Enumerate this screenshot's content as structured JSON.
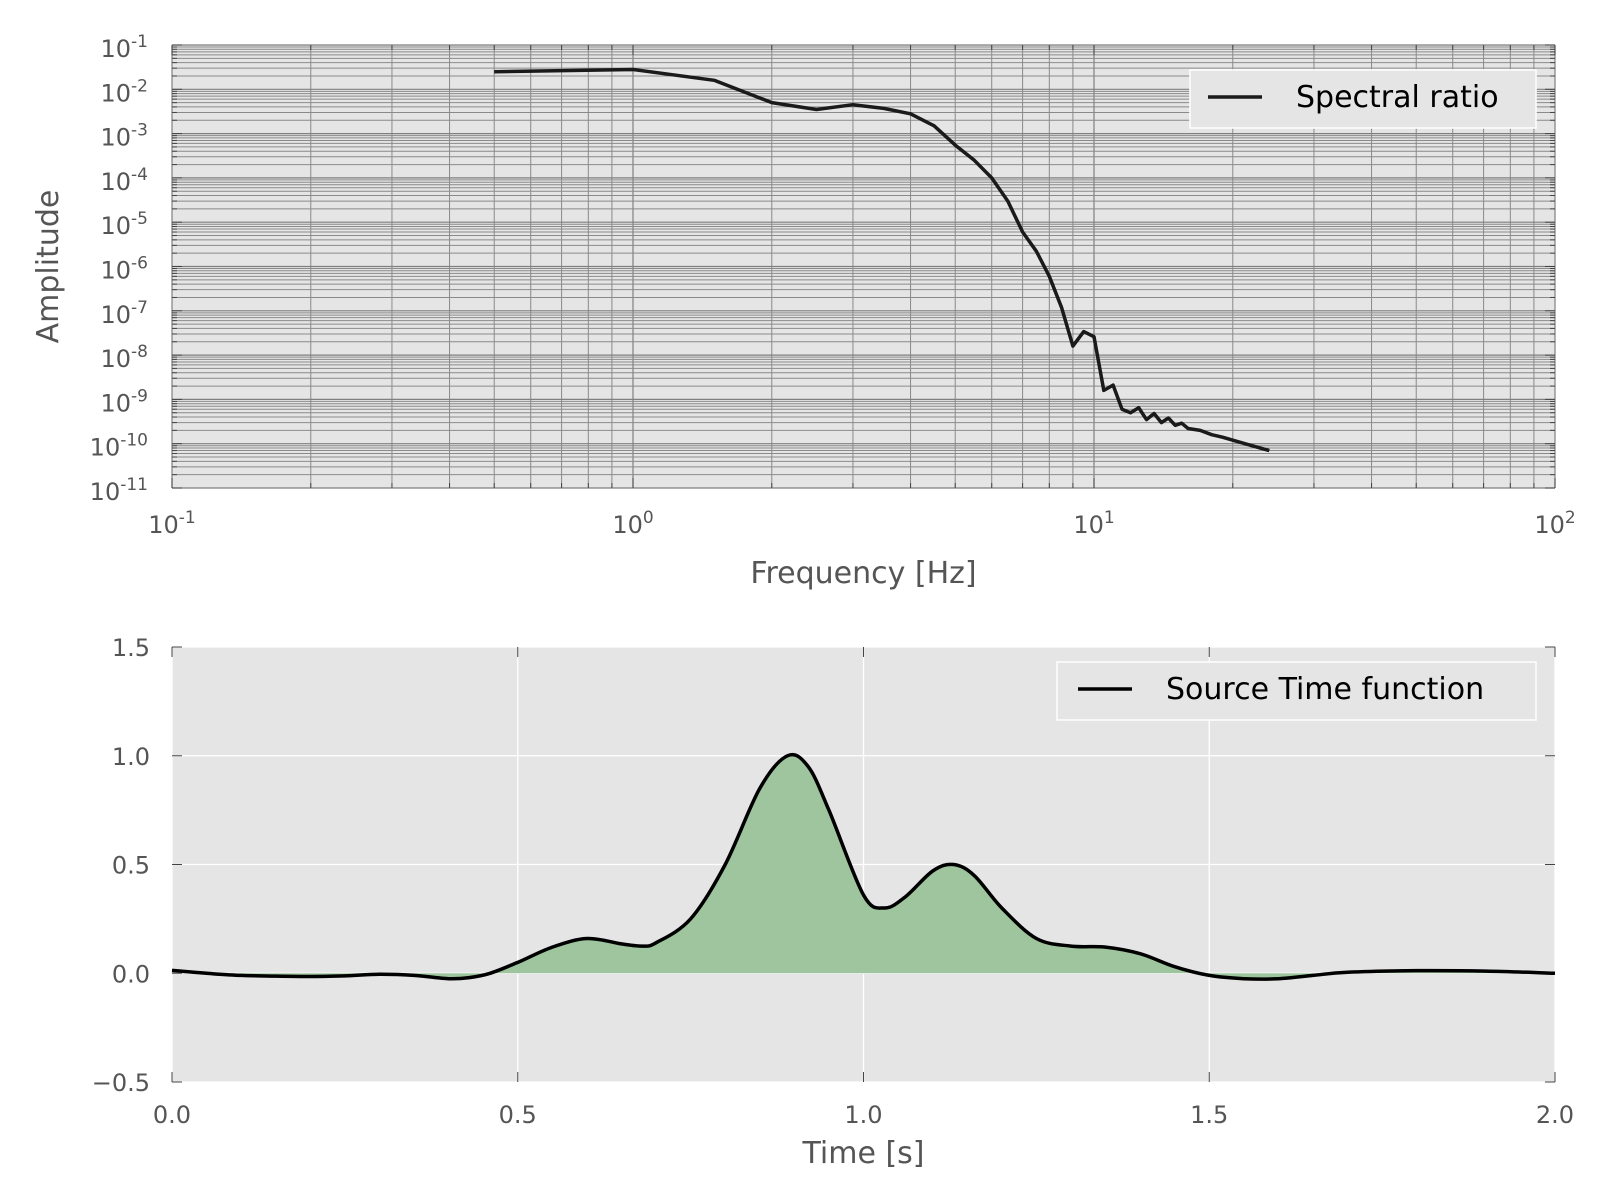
{
  "chart_data": [
    {
      "type": "line",
      "xscale": "log",
      "yscale": "log",
      "xlim": [
        0.1,
        100
      ],
      "ylim": [
        1e-11,
        0.1
      ],
      "xlabel": "Frequency [Hz]",
      "ylabel": "Amplitude",
      "grid": "major and minor",
      "legend_position": "top-right",
      "x_tick_labels": [
        {
          "base": "10",
          "exp": "-1"
        },
        {
          "base": "10",
          "exp": "0"
        },
        {
          "base": "10",
          "exp": "1"
        },
        {
          "base": "10",
          "exp": "2"
        }
      ],
      "y_tick_labels": [
        {
          "base": "10",
          "exp": "-1"
        },
        {
          "base": "10",
          "exp": "-2"
        },
        {
          "base": "10",
          "exp": "-3"
        },
        {
          "base": "10",
          "exp": "-4"
        },
        {
          "base": "10",
          "exp": "-5"
        },
        {
          "base": "10",
          "exp": "-6"
        },
        {
          "base": "10",
          "exp": "-7"
        },
        {
          "base": "10",
          "exp": "-8"
        },
        {
          "base": "10",
          "exp": "-9"
        },
        {
          "base": "10",
          "exp": "-10"
        },
        {
          "base": "10",
          "exp": "-11"
        }
      ],
      "series": [
        {
          "name": "Spectral ratio",
          "color": "#1a1a1a",
          "x": [
            0.5,
            1.0,
            1.5,
            2.0,
            2.5,
            3.0,
            3.5,
            4.0,
            4.5,
            5.0,
            5.5,
            6.0,
            6.5,
            7.0,
            7.5,
            8.0,
            8.5,
            9.0,
            9.5,
            10.0,
            10.5,
            11.0,
            11.5,
            12.0,
            12.5,
            13.0,
            13.5,
            14.0,
            14.5,
            15.0,
            15.5,
            16.0,
            17.0,
            18.0,
            19.0,
            20.0,
            22.0,
            24.0
          ],
          "y": [
            0.025,
            0.028,
            0.016,
            0.005,
            0.0035,
            0.0045,
            0.0037,
            0.0028,
            0.0015,
            0.00055,
            0.00025,
            0.0001,
            3e-05,
            6e-06,
            2.2e-06,
            6e-07,
            1.2e-07,
            1.6e-08,
            3.4e-08,
            2.6e-08,
            1.6e-09,
            2.1e-09,
            6e-10,
            5e-10,
            6.5e-10,
            3.5e-10,
            4.8e-10,
            3e-10,
            3.8e-10,
            2.6e-10,
            2.9e-10,
            2.2e-10,
            2e-10,
            1.6e-10,
            1.4e-10,
            1.2e-10,
            9e-11,
            7e-11
          ]
        }
      ]
    },
    {
      "type": "area",
      "xlim": [
        0.0,
        2.0
      ],
      "ylim": [
        -0.5,
        1.5
      ],
      "xlabel": "Time [s]",
      "ylabel": "",
      "grid": "major",
      "legend_position": "top-right",
      "x_tick_labels": [
        "0.0",
        "0.5",
        "1.0",
        "1.5",
        "2.0"
      ],
      "y_tick_labels": [
        "1.5",
        "1.0",
        "0.5",
        "0.0",
        "−0.5"
      ],
      "series": [
        {
          "name": "Source Time function",
          "color": "#000000",
          "fill_color": "#9ec59e",
          "x": [
            0.0,
            0.05,
            0.1,
            0.15,
            0.2,
            0.25,
            0.3,
            0.35,
            0.4,
            0.43,
            0.46,
            0.5,
            0.55,
            0.6,
            0.65,
            0.68,
            0.7,
            0.75,
            0.8,
            0.85,
            0.89,
            0.92,
            0.95,
            1.0,
            1.03,
            1.06,
            1.1,
            1.13,
            1.16,
            1.2,
            1.25,
            1.3,
            1.35,
            1.4,
            1.45,
            1.5,
            1.55,
            1.6,
            1.65,
            1.7,
            1.8,
            1.9,
            2.0
          ],
          "y": [
            0.013,
            0.0,
            -0.01,
            -0.013,
            -0.015,
            -0.012,
            -0.005,
            -0.01,
            -0.025,
            -0.02,
            0.0,
            0.05,
            0.12,
            0.16,
            0.135,
            0.125,
            0.14,
            0.25,
            0.5,
            0.85,
            1.0,
            0.95,
            0.75,
            0.36,
            0.3,
            0.35,
            0.47,
            0.5,
            0.45,
            0.3,
            0.16,
            0.125,
            0.12,
            0.09,
            0.03,
            -0.01,
            -0.025,
            -0.025,
            -0.01,
            0.005,
            0.012,
            0.01,
            0.0
          ]
        }
      ]
    }
  ]
}
